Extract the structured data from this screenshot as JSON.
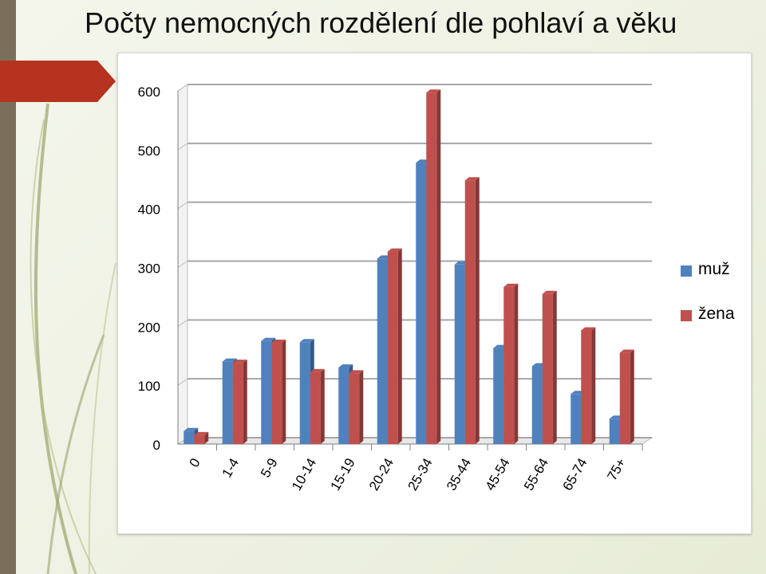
{
  "slide": {
    "title": "Počty nemocných rozdělení dle pohlaví a věku",
    "accent_color": "#b5331f",
    "band_color": "#7a6f59"
  },
  "chart_data": {
    "type": "bar",
    "title": "",
    "xlabel": "",
    "ylabel": "",
    "ylim": [
      0,
      600
    ],
    "yticks": [
      0,
      100,
      200,
      300,
      400,
      500,
      600
    ],
    "grid": true,
    "legend": "right",
    "categories": [
      "0",
      "1-4",
      "5-9",
      "10-14",
      "15-19",
      "20-24",
      "25-34",
      "35-44",
      "45-54",
      "55-64",
      "65-74",
      "75+"
    ],
    "series": [
      {
        "name": "muž",
        "color": "#4f81bd",
        "values": [
          22,
          140,
          175,
          173,
          130,
          315,
          478,
          305,
          163,
          132,
          85,
          43
        ]
      },
      {
        "name": "žena",
        "color": "#c0504d",
        "values": [
          15,
          138,
          172,
          122,
          120,
          327,
          597,
          448,
          267,
          255,
          193,
          155
        ]
      }
    ]
  }
}
